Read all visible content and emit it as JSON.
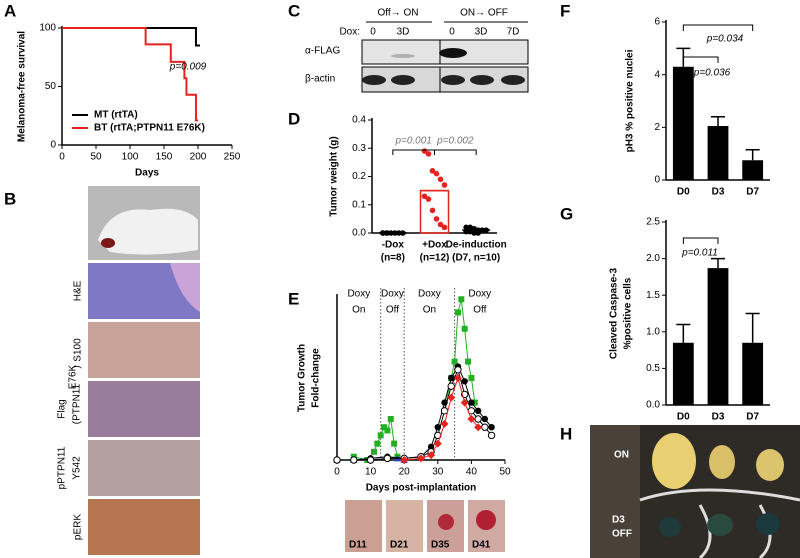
{
  "panel_b": {
    "panel": "B",
    "stains": [
      "H&E",
      "S100",
      "pERK"
    ],
    "flag": [
      "Flag",
      "(PTPN11",
      "E76K",
      ")"
    ],
    "pptpn11": [
      "pPTPN11",
      "Y542"
    ]
  },
  "panel_c": {
    "panel": "C",
    "groups": [
      "Off→ ON",
      "ON→ OFF"
    ],
    "dox": "Dox:",
    "lanes": [
      "0",
      "3D",
      "0",
      "3D",
      "7D"
    ],
    "rows": [
      "α-FLAG",
      "β-actin"
    ]
  },
  "panel_h": {
    "panel": "H",
    "rows": [
      "ON",
      "D3",
      "OFF"
    ]
  },
  "panel_e_photos": [
    "D11",
    "D21",
    "D35",
    "D41"
  ],
  "chart_data": [
    {
      "type": "step",
      "panel": "A",
      "xlabel": "Days",
      "ylabel": "Melanoma-free survival",
      "xlim": [
        0,
        250
      ],
      "xticks": [
        0,
        50,
        100,
        150,
        200,
        250
      ],
      "ylim": [
        0,
        100
      ],
      "yticks": [
        0,
        50,
        100
      ],
      "annotations": [
        "p=0.009"
      ],
      "series": [
        {
          "name": "MT (rtTA)",
          "color": "#000000",
          "x": [
            0,
            197,
            200
          ],
          "values": [
            100,
            85,
            85
          ]
        },
        {
          "name": "BT (rtTA;PTPN11 E76K)",
          "color": "#e8231f",
          "x": [
            0,
            123,
            160,
            180,
            183,
            197
          ],
          "values": [
            100,
            86,
            71,
            57,
            43,
            21
          ]
        }
      ]
    },
    {
      "type": "dot",
      "panel": "D",
      "ylabel": "Tumor weight (g)",
      "categories": [
        "-Dox",
        "+Dox",
        "De-induction"
      ],
      "category_notes": [
        "(n=8)",
        "(n=12)",
        "(D7, n=10)"
      ],
      "colors": [
        "#000000",
        "#e8231f",
        "#000000"
      ],
      "ylim": [
        0,
        0.4
      ],
      "yticks": [
        {
          "value": 0,
          "label": "0.0"
        },
        0.1,
        0.2,
        0.3,
        0.4
      ],
      "values": [
        0,
        0.15,
        0.01
      ],
      "errors": [
        0.002,
        0.03,
        0.003
      ],
      "points": [
        [
          0,
          0,
          0,
          0,
          0,
          0,
          0,
          0
        ],
        [
          0.29,
          0.28,
          0.22,
          0.21,
          0.19,
          0.17,
          0.13,
          0.12,
          0.08,
          0.05,
          0.03,
          0.02
        ],
        [
          0.02,
          0.02,
          0.015,
          0.01,
          0.01,
          0.01,
          0.005,
          0.005,
          0,
          0
        ]
      ],
      "annotations": [
        "p=0.001",
        "p=0.002"
      ]
    },
    {
      "type": "line",
      "panel": "E",
      "xlabel": "Days post-implantation",
      "ylabel": [
        "Tumor Growth",
        "Fold-change"
      ],
      "xlim": [
        0,
        50
      ],
      "xticks": [
        0,
        10,
        20,
        30,
        40,
        50
      ],
      "ylim": [
        0,
        1
      ],
      "phase_boundaries": [
        13,
        20,
        35
      ],
      "phases": [
        [
          "Doxy",
          "On"
        ],
        [
          "Doxy",
          "Off"
        ],
        [
          "Doxy",
          "On"
        ],
        [
          "Doxy",
          "Off"
        ]
      ],
      "series": [
        {
          "color": "#22b022",
          "marker": "square",
          "x": [
            5,
            9,
            11,
            12,
            13,
            14,
            15,
            16,
            17,
            18,
            20,
            27,
            32,
            34,
            35,
            36,
            37,
            38,
            39,
            40,
            41
          ],
          "values": [
            0.02,
            0,
            0.05,
            0.1,
            0.15,
            0.2,
            0.18,
            0.25,
            0.1,
            0.02,
            0,
            null,
            0.3,
            0.5,
            0.6,
            0.9,
            0.98,
            0.8,
            0.6,
            0.5,
            0.35
          ]
        },
        {
          "color": "#1f3fd0",
          "marker": "triangle",
          "x": [
            0,
            5,
            10,
            15,
            18,
            20
          ],
          "values": [
            0,
            0,
            0.01,
            0.02,
            0.01,
            0
          ]
        },
        {
          "color": "#000000",
          "marker": "circle",
          "x": [
            0,
            5,
            10,
            15,
            20,
            25,
            28,
            30,
            32,
            34,
            36,
            38,
            40,
            42,
            44,
            46
          ],
          "values": [
            0,
            0,
            0.01,
            0.02,
            0.01,
            0.02,
            0.08,
            0.2,
            0.35,
            0.5,
            0.57,
            0.48,
            0.35,
            0.3,
            0.25,
            0.2
          ]
        },
        {
          "color": "#000000",
          "marker": "open-circle",
          "x": [
            0,
            5,
            10,
            15,
            20,
            25,
            28,
            30,
            32,
            34,
            36,
            38,
            40,
            42,
            44,
            46
          ],
          "values": [
            0,
            0,
            0,
            0.01,
            0.01,
            0.02,
            0.05,
            0.15,
            0.3,
            0.45,
            0.55,
            0.4,
            0.3,
            0.25,
            0.2,
            0.15
          ]
        },
        {
          "color": "#e8231f",
          "marker": "diamond",
          "x": [
            20,
            25,
            28,
            30,
            32,
            34,
            36,
            38,
            40,
            42
          ],
          "values": [
            0,
            0.01,
            0.03,
            0.1,
            0.22,
            0.38,
            0.5,
            0.35,
            0.25,
            0.2
          ]
        }
      ]
    },
    {
      "type": "bar",
      "panel": "F",
      "ylabel": "pH3 % positive nuclei",
      "color": "#000000",
      "categories": [
        "D0",
        "D3",
        "D7"
      ],
      "values": [
        4.3,
        2.05,
        0.75
      ],
      "errors": [
        0.7,
        0.35,
        0.4
      ],
      "ylim": [
        0,
        6
      ],
      "yticks": [
        0,
        2,
        4,
        6
      ],
      "annotations": [
        "p=0.036",
        "p=0.034"
      ]
    },
    {
      "type": "bar",
      "panel": "G",
      "ylabel": [
        "Cleaved Caspase-3",
        "%positive cells"
      ],
      "color": "#000000",
      "categories": [
        "D0",
        "D3",
        "D7"
      ],
      "values": [
        0.85,
        1.87,
        0.85
      ],
      "errors": [
        0.25,
        0.13,
        0.4
      ],
      "ylim": [
        0,
        2.5
      ],
      "yticks": [
        {
          "value": 0,
          "label": "0.0"
        },
        0.5,
        {
          "value": 1,
          "label": "1.0"
        },
        1.5,
        {
          "value": 2,
          "label": "2.0"
        },
        2.5
      ],
      "annotations": [
        "p=0.011"
      ]
    }
  ]
}
